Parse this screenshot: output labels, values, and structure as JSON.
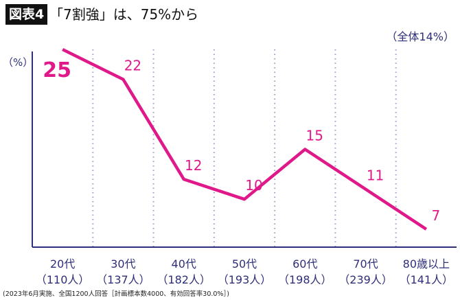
{
  "header": {
    "badge": "図表4",
    "title": "「7割強」は、75%から",
    "subtitle": "（全体14%）"
  },
  "footnote": "(2023年6月実施、全国1200人回答［計画標本数4000、有効回答率30.0%］)",
  "chart_data": {
    "type": "line",
    "ylabel": "（%）",
    "categories": [
      "20代",
      "30代",
      "40代",
      "50代",
      "60代",
      "70代",
      "80歳以上"
    ],
    "sublabels": [
      "（110人）",
      "（137人）",
      "（182人）",
      "（193人）",
      "（198人）",
      "（239人）",
      "（141人）"
    ],
    "series": [
      {
        "values": [
          25,
          22,
          12,
          10,
          15,
          11,
          7
        ]
      }
    ],
    "ylim": [
      5.2,
      25
    ],
    "grid": "vertical dotted separators",
    "colors": {
      "line": "#e0198a",
      "axis": "#2e2e7a",
      "grid": "#9a9ac8",
      "text": "#2e2e7a"
    }
  }
}
